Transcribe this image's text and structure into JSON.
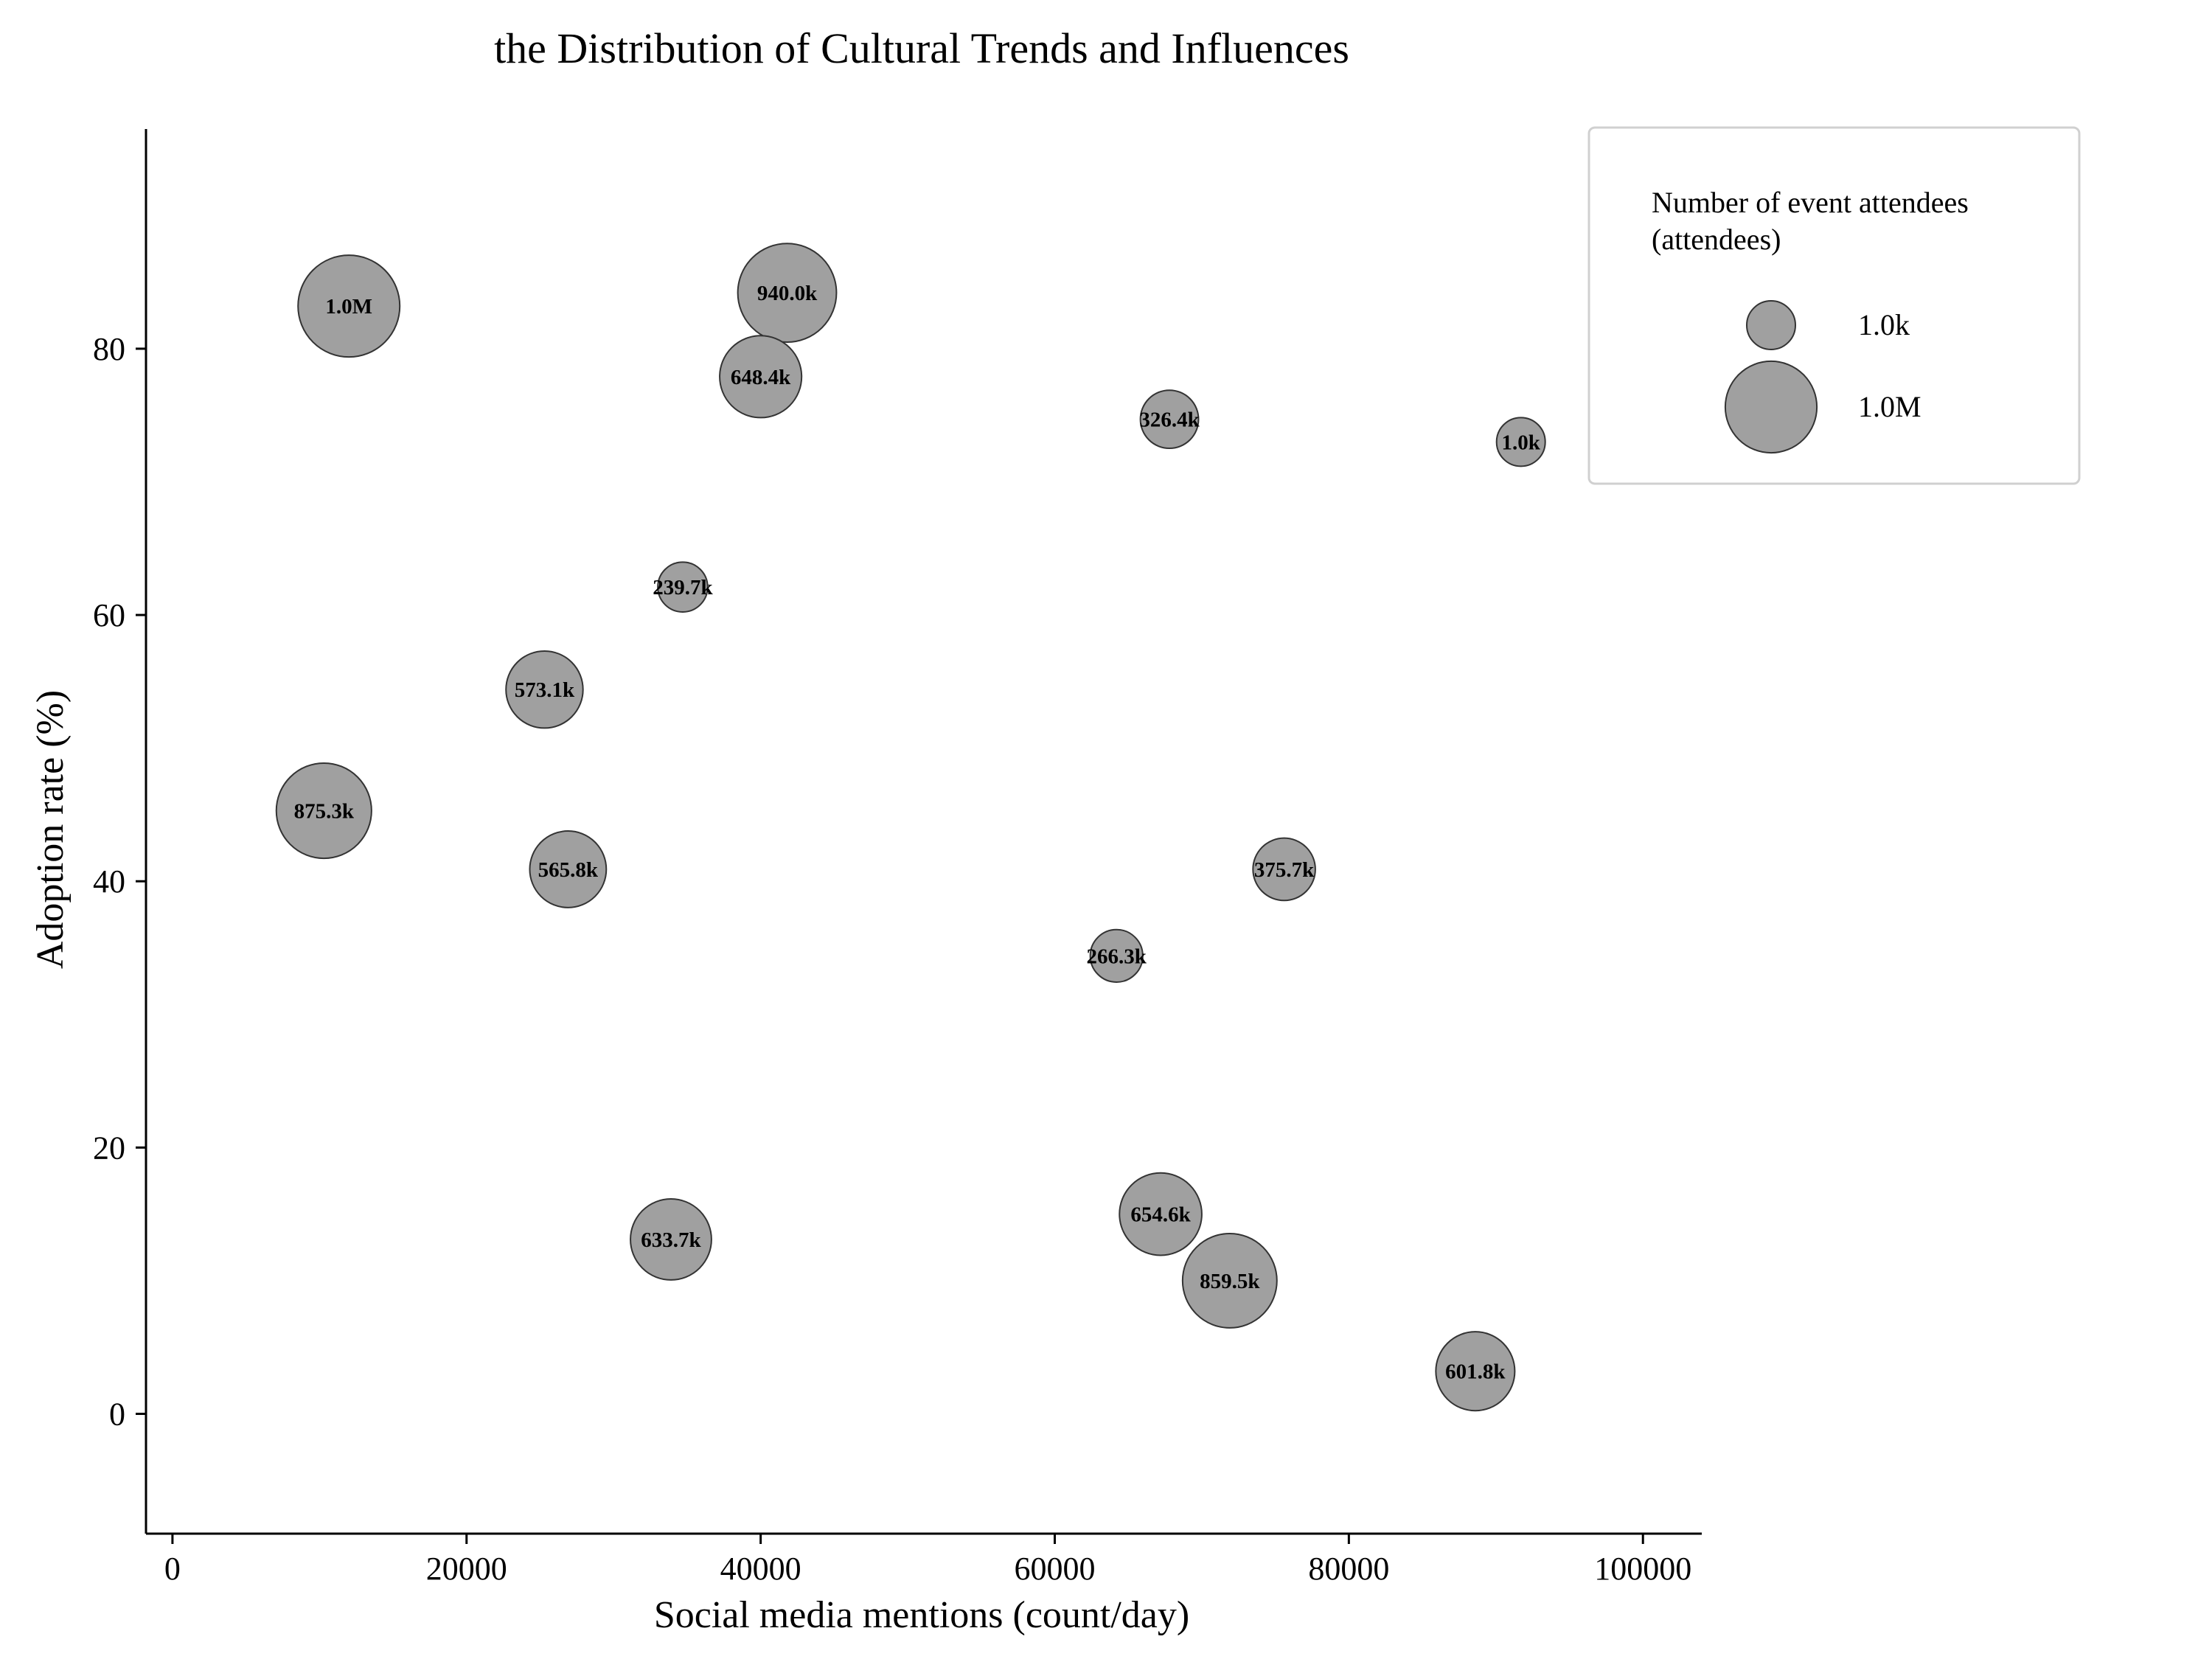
{
  "chart_data": {
    "type": "bubble",
    "title": "the Distribution of Cultural Trends and Influences",
    "xlabel": "Social media mentions (count/day)",
    "ylabel": "Adoption rate (%)",
    "xlim": [
      -1800,
      104000
    ],
    "ylim": [
      -9,
      96.5
    ],
    "xticks": [
      0,
      20000,
      40000,
      60000,
      80000,
      100000
    ],
    "yticks": [
      0,
      20,
      40,
      60,
      80
    ],
    "grid": false,
    "legend_position": "top-right",
    "bubble_color": "#a0a0a0",
    "bubble_edge_color": "#333333",
    "points": [
      {
        "x": 12000,
        "y": 83.2,
        "size": 1000000,
        "label": "1.0M"
      },
      {
        "x": 41800,
        "y": 84.2,
        "size": 940000,
        "label": "940.0k"
      },
      {
        "x": 40000,
        "y": 77.9,
        "size": 648400,
        "label": "648.4k"
      },
      {
        "x": 67800,
        "y": 74.7,
        "size": 326400,
        "label": "326.4k"
      },
      {
        "x": 91700,
        "y": 73.0,
        "size": 1000,
        "label": "1.0k"
      },
      {
        "x": 34700,
        "y": 62.1,
        "size": 239700,
        "label": "239.7k"
      },
      {
        "x": 25300,
        "y": 54.4,
        "size": 573100,
        "label": "573.1k"
      },
      {
        "x": 10300,
        "y": 45.3,
        "size": 875300,
        "label": "875.3k"
      },
      {
        "x": 26900,
        "y": 40.9,
        "size": 565800,
        "label": "565.8k"
      },
      {
        "x": 75600,
        "y": 40.9,
        "size": 375700,
        "label": "375.7k"
      },
      {
        "x": 64200,
        "y": 34.4,
        "size": 266300,
        "label": "266.3k"
      },
      {
        "x": 33900,
        "y": 13.1,
        "size": 633700,
        "label": "633.7k"
      },
      {
        "x": 67200,
        "y": 15.0,
        "size": 654600,
        "label": "654.6k"
      },
      {
        "x": 71900,
        "y": 10.0,
        "size": 859500,
        "label": "859.5k"
      },
      {
        "x": 88600,
        "y": 3.2,
        "size": 601800,
        "label": "601.8k"
      }
    ],
    "legend": {
      "title_lines": [
        "Number of event attendees",
        "(attendees)"
      ],
      "entries": [
        {
          "size": 1000,
          "label": "1.0k"
        },
        {
          "size": 1000000,
          "label": "1.0M"
        }
      ]
    }
  }
}
